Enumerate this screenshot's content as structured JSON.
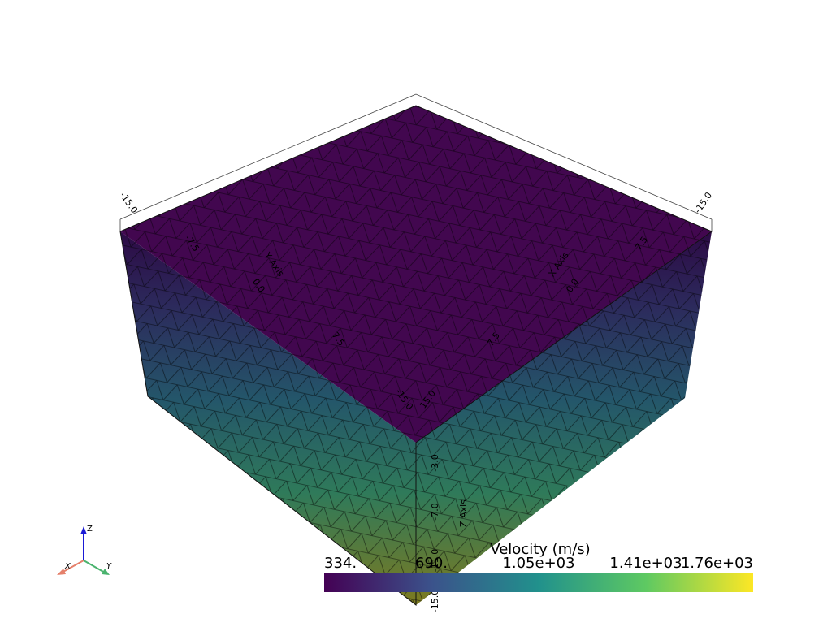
{
  "colorbar": {
    "title": "Velocity (m/s)",
    "labels": [
      "334.",
      "690.",
      "1.05e+03",
      "1.41e+03",
      "1.76e+03"
    ]
  },
  "axis_labels": [
    "-15.0",
    "-15.0",
    "-7.5",
    "Y Axis",
    "0.0",
    "7.5",
    "-15.0",
    "15.0",
    "7.5",
    "0.0",
    "X Axis",
    "7.5",
    "-3.0",
    "-7.0",
    "Z Axis",
    "-11.0",
    "-15.0"
  ],
  "orientation": {
    "x": "X",
    "y": "Y",
    "z": "Z"
  }
}
